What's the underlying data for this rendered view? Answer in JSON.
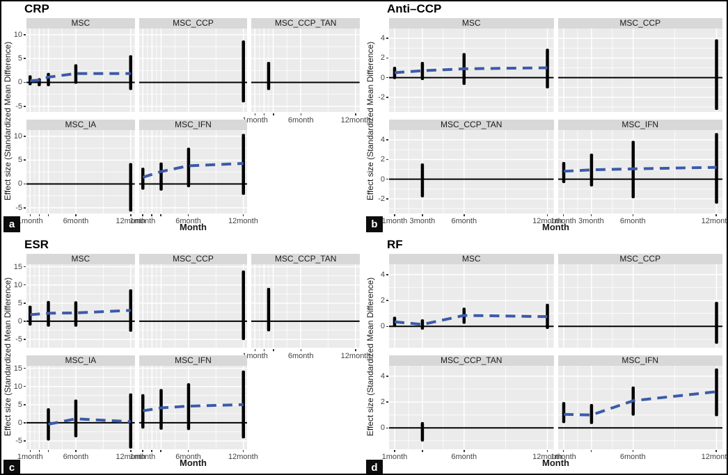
{
  "chart_data": {
    "type": "forest-ci-facets",
    "description": "Meta-analysis effect sizes (SMD) with 95% CI bars over follow-up months, faceted by treatment group; blue dashed meta-regression trend",
    "ylabel": "Effect size (Standardized Mean Difference)",
    "xlabel": "Month",
    "colors": {
      "trend": "#3b5ba9",
      "panel_bg": "#ebebeb",
      "strip_bg": "#d8d8d8",
      "grid": "#ffffff",
      "bar": "#000000",
      "zero_line": "#000000",
      "border": "#000000"
    },
    "panels": [
      {
        "letter": "a",
        "title": "CRP",
        "cols": 3,
        "ylim": [
          -6.2,
          11.3
        ],
        "yticks": [
          -5,
          0,
          5,
          10
        ],
        "xticks": [
          {
            "m": 1,
            "label": "1month"
          },
          {
            "m": 2,
            "label": ""
          },
          {
            "m": 3,
            "label": ""
          },
          {
            "m": 6,
            "label": "6month"
          },
          {
            "m": 12,
            "label": "12month"
          }
        ],
        "xminor": [
          1.5,
          2.5,
          4.5,
          9
        ],
        "facets": [
          {
            "name": "MSC",
            "row": 0,
            "col": 0,
            "bars": [
              [
                1,
                -0.6,
                1.5
              ],
              [
                2,
                -0.8,
                0.9
              ],
              [
                3,
                -0.8,
                2.0
              ],
              [
                6,
                -0.3,
                3.8
              ],
              [
                12,
                -1.6,
                5.7
              ]
            ],
            "trend": [
              [
                1,
                0.35
              ],
              [
                2,
                0.5
              ],
              [
                3,
                1.1
              ],
              [
                6,
                1.85
              ],
              [
                12,
                1.85
              ]
            ]
          },
          {
            "name": "MSC_CCP",
            "row": 0,
            "col": 1,
            "bars": [
              [
                12,
                -4.2,
                8.8
              ]
            ],
            "trend": []
          },
          {
            "name": "MSC_CCP_TAN",
            "row": 0,
            "col": 2,
            "bars": [
              [
                2.5,
                -1.6,
                4.3
              ]
            ],
            "trend": []
          },
          {
            "name": "MSC_IA",
            "row": 1,
            "col": 0,
            "bars": [
              [
                12,
                -5.8,
                4.4
              ]
            ],
            "trend": []
          },
          {
            "name": "MSC_IFN",
            "row": 1,
            "col": 1,
            "bars": [
              [
                1,
                -1.2,
                3.4
              ],
              [
                3,
                -1.4,
                4.5
              ],
              [
                6,
                -0.7,
                7.6
              ],
              [
                12,
                -2.3,
                10.5
              ]
            ],
            "trend": [
              [
                1,
                1.4
              ],
              [
                3,
                2.6
              ],
              [
                6,
                3.8
              ],
              [
                12,
                4.3
              ]
            ]
          }
        ]
      },
      {
        "letter": "b",
        "title": "Anti–CCP",
        "cols": 2,
        "ylim": [
          -3.5,
          5.0
        ],
        "yticks": [
          -2,
          0,
          2,
          4
        ],
        "xticks": [
          {
            "m": 1,
            "label": "1month"
          },
          {
            "m": 3,
            "label": "3month"
          },
          {
            "m": 6,
            "label": "6month"
          },
          {
            "m": 12,
            "label": "12month"
          }
        ],
        "xminor": [
          2,
          4.5,
          9
        ],
        "facets": [
          {
            "name": "MSC",
            "row": 0,
            "col": 0,
            "bars": [
              [
                1,
                -0.15,
                1.1
              ],
              [
                3,
                -0.25,
                1.6
              ],
              [
                6,
                -0.75,
                2.5
              ],
              [
                12,
                -1.1,
                2.95
              ]
            ],
            "trend": [
              [
                1,
                0.5
              ],
              [
                3,
                0.7
              ],
              [
                6,
                0.9
              ],
              [
                12,
                1.0
              ]
            ]
          },
          {
            "name": "MSC_CCP",
            "row": 0,
            "col": 1,
            "bars": [
              [
                12,
                -3.3,
                3.9
              ]
            ],
            "trend": []
          },
          {
            "name": "MSC_CCP_TAN",
            "row": 1,
            "col": 0,
            "bars": [
              [
                3,
                -1.85,
                1.6
              ]
            ],
            "trend": []
          },
          {
            "name": "MSC_IFN",
            "row": 1,
            "col": 1,
            "bars": [
              [
                1,
                -0.4,
                1.75
              ],
              [
                3,
                -0.75,
                2.6
              ],
              [
                6,
                -1.95,
                3.9
              ],
              [
                12,
                -2.5,
                4.7
              ]
            ],
            "trend": [
              [
                1,
                0.8
              ],
              [
                3,
                0.95
              ],
              [
                6,
                1.05
              ],
              [
                12,
                1.2
              ]
            ]
          }
        ]
      },
      {
        "letter": "c",
        "title": "ESR",
        "cols": 3,
        "ylim": [
          -7.3,
          15.7
        ],
        "yticks": [
          -5,
          0,
          5,
          10,
          15
        ],
        "xticks": [
          {
            "m": 1,
            "label": "1month"
          },
          {
            "m": 2,
            "label": ""
          },
          {
            "m": 3,
            "label": ""
          },
          {
            "m": 6,
            "label": "6month"
          },
          {
            "m": 12,
            "label": "12month"
          }
        ],
        "xminor": [
          1.5,
          2.5,
          4.5,
          9
        ],
        "facets": [
          {
            "name": "MSC",
            "row": 0,
            "col": 0,
            "bars": [
              [
                1,
                -1.2,
                4.3
              ],
              [
                3,
                -1.5,
                5.6
              ],
              [
                6,
                -1.5,
                5.5
              ],
              [
                12,
                -2.9,
                8.8
              ]
            ],
            "trend": [
              [
                1,
                1.8
              ],
              [
                3,
                2.2
              ],
              [
                6,
                2.3
              ],
              [
                12,
                3.0
              ]
            ]
          },
          {
            "name": "MSC_CCP",
            "row": 0,
            "col": 1,
            "bars": [
              [
                12,
                -5.2,
                14.0
              ]
            ],
            "trend": []
          },
          {
            "name": "MSC_CCP_TAN",
            "row": 0,
            "col": 2,
            "bars": [
              [
                2.5,
                -2.8,
                9.2
              ]
            ],
            "trend": []
          },
          {
            "name": "MSC_IA",
            "row": 1,
            "col": 0,
            "bars": [
              [
                3,
                -4.9,
                4.0
              ],
              [
                6,
                -4.0,
                6.4
              ],
              [
                12,
                -7.1,
                8.1
              ]
            ],
            "trend": [
              [
                3,
                -0.4
              ],
              [
                6,
                1.1
              ],
              [
                9,
                0.7
              ],
              [
                12,
                0.3
              ]
            ]
          },
          {
            "name": "MSC_IFN",
            "row": 1,
            "col": 1,
            "bars": [
              [
                1,
                -1.6,
                7.9
              ],
              [
                3,
                -1.9,
                9.3
              ],
              [
                6,
                -2.0,
                10.9
              ],
              [
                12,
                -4.3,
                14.4
              ]
            ],
            "trend": [
              [
                1,
                3.3
              ],
              [
                3,
                4.1
              ],
              [
                6,
                4.6
              ],
              [
                12,
                5.0
              ]
            ]
          }
        ]
      },
      {
        "letter": "d",
        "title": "RF",
        "cols": 2,
        "ylim": [
          -1.65,
          4.8
        ],
        "yticks": [
          0,
          2,
          4
        ],
        "xticks": [
          {
            "m": 1,
            "label": "1month"
          },
          {
            "m": 3,
            "label": ""
          },
          {
            "m": 6,
            "label": "6month"
          },
          {
            "m": 12,
            "label": "12month"
          }
        ],
        "xminor": [
          2,
          4.5,
          9
        ],
        "facets": [
          {
            "name": "MSC",
            "row": 0,
            "col": 0,
            "bars": [
              [
                1,
                -0.05,
                0.75
              ],
              [
                3,
                -0.25,
                0.55
              ],
              [
                6,
                0.2,
                1.45
              ],
              [
                12,
                -0.2,
                1.75
              ]
            ],
            "trend": [
              [
                1,
                0.35
              ],
              [
                3,
                0.15
              ],
              [
                6,
                0.85
              ],
              [
                12,
                0.75
              ]
            ]
          },
          {
            "name": "MSC_CCP",
            "row": 0,
            "col": 1,
            "bars": [
              [
                12,
                -1.35,
                1.9
              ]
            ],
            "trend": []
          },
          {
            "name": "MSC_CCP_TAN",
            "row": 1,
            "col": 0,
            "bars": [
              [
                3,
                -1.05,
                0.45
              ]
            ],
            "trend": []
          },
          {
            "name": "MSC_IFN",
            "row": 1,
            "col": 1,
            "bars": [
              [
                1,
                0.37,
                2.0
              ],
              [
                3,
                0.3,
                1.85
              ],
              [
                6,
                0.95,
                3.2
              ],
              [
                12,
                0.9,
                4.6
              ]
            ],
            "trend": [
              [
                1,
                1.05
              ],
              [
                3,
                1.0
              ],
              [
                6,
                2.1
              ],
              [
                12,
                2.8
              ]
            ]
          }
        ]
      }
    ]
  }
}
